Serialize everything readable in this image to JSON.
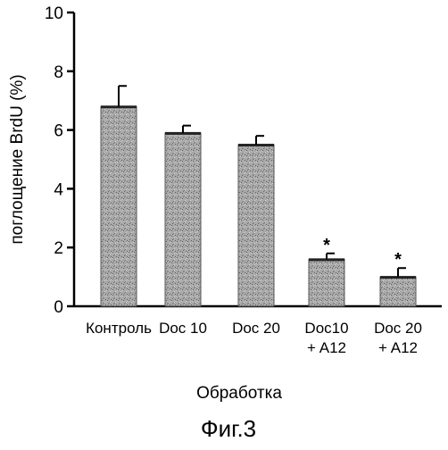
{
  "chart_data": {
    "type": "bar",
    "categories": [
      [
        "Контроль"
      ],
      [
        "Doc 10"
      ],
      [
        "Doc 20"
      ],
      [
        "Doc10",
        "+ A12"
      ],
      [
        "Doc 20",
        "+ A12"
      ]
    ],
    "values": [
      6.8,
      5.9,
      5.5,
      1.6,
      1.0
    ],
    "errors": [
      0.7,
      0.25,
      0.3,
      0.2,
      0.3
    ],
    "significance": [
      "",
      "",
      "",
      "*",
      "*"
    ],
    "ylabel": "поглощение BrdU (%)",
    "xlabel": "Обработка",
    "ylim": [
      0,
      10
    ],
    "yticks": [
      0,
      2,
      4,
      6,
      8,
      10
    ],
    "grid": false,
    "bar_color": "#a9a9a9"
  },
  "caption": "Фиг.3"
}
